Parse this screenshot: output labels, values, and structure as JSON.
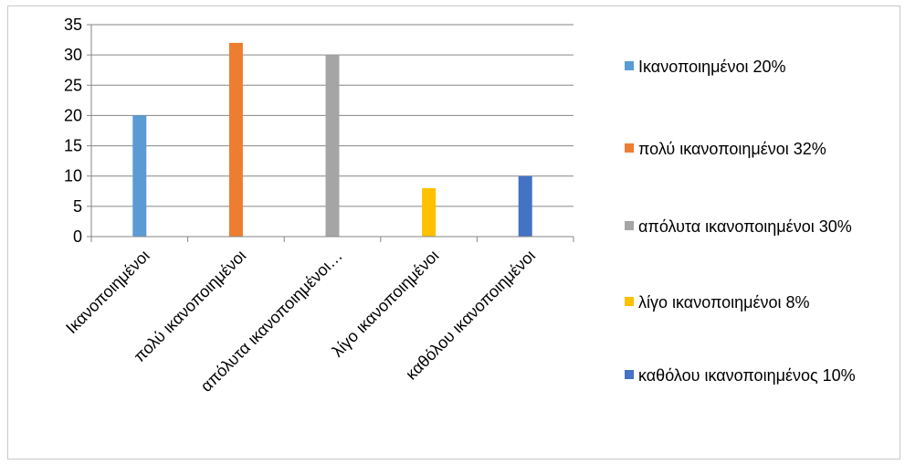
{
  "chart_data": {
    "type": "bar",
    "categories": [
      "Ικανοποιημένοι",
      "πολύ ικανοποιημένοι",
      "απόλυτα ικανοποιημένοι…",
      "λίγο ικανοποιημένοι",
      "καθόλου ικανοποιημένοι"
    ],
    "values": [
      20,
      32,
      30,
      8,
      10
    ],
    "colors": [
      "#5b9bd5",
      "#ed7d31",
      "#a5a5a5",
      "#ffc000",
      "#4472c4"
    ],
    "title": "",
    "xlabel": "",
    "ylabel": "",
    "ylim": [
      0,
      35
    ],
    "yticks": [
      "0",
      "5",
      "10",
      "15",
      "20",
      "25",
      "30",
      "35"
    ],
    "grid": true,
    "legend_position": "right",
    "legend": [
      {
        "label": "Ικανοποιημένοι 20%",
        "color": "#5b9bd5"
      },
      {
        "label": "πολύ ικανοποιημένοι 32%",
        "color": "#ed7d31"
      },
      {
        "label": "απόλυτα ικανοποιημένοι 30%",
        "color": "#a5a5a5"
      },
      {
        "label": "λίγο ικανοποιημένοι 8%",
        "color": "#ffc000"
      },
      {
        "label": "καθόλου ικανοποιημένος 10%",
        "color": "#4472c4"
      }
    ]
  }
}
